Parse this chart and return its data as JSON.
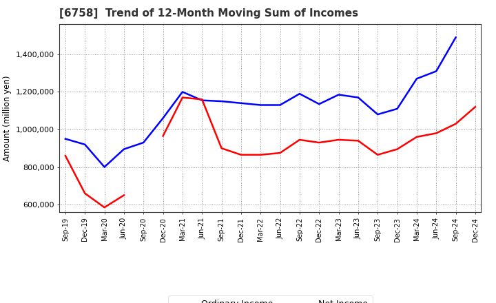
{
  "title": "[6758]  Trend of 12-Month Moving Sum of Incomes",
  "ylabel": "Amount (million yen)",
  "ylim": [
    560000,
    1560000
  ],
  "yticks": [
    600000,
    800000,
    1000000,
    1200000,
    1400000
  ],
  "background_color": "#ffffff",
  "grid_color": "#888888",
  "ordinary_income_color": "#0000ff",
  "net_income_color": "#ff0000",
  "labels": [
    "Sep-19",
    "Dec-19",
    "Mar-20",
    "Jun-20",
    "Sep-20",
    "Dec-20",
    "Mar-21",
    "Jun-21",
    "Sep-21",
    "Dec-21",
    "Mar-22",
    "Jun-22",
    "Sep-22",
    "Dec-22",
    "Mar-23",
    "Jun-23",
    "Sep-23",
    "Dec-23",
    "Mar-24",
    "Jun-24",
    "Sep-24",
    "Dec-24"
  ],
  "ordinary_income": [
    950000,
    920000,
    800000,
    895000,
    930000,
    1060000,
    1200000,
    1155000,
    1150000,
    1140000,
    1130000,
    1130000,
    1190000,
    1135000,
    1185000,
    1170000,
    1080000,
    1110000,
    1270000,
    1310000,
    1490000,
    null
  ],
  "net_income": [
    860000,
    660000,
    585000,
    650000,
    null,
    965000,
    1170000,
    1160000,
    900000,
    865000,
    865000,
    875000,
    945000,
    930000,
    945000,
    940000,
    865000,
    895000,
    960000,
    980000,
    1030000,
    1120000
  ]
}
